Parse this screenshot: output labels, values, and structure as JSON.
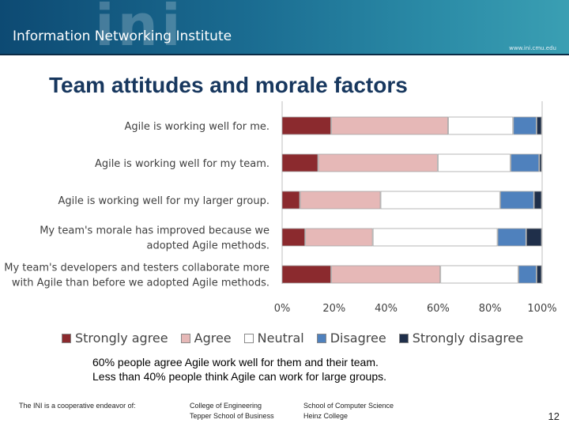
{
  "header": {
    "logo_text": "ini",
    "institute_name": "Information Networking Institute",
    "url": "www.ini.cmu.edu"
  },
  "slide": {
    "title": "Team attitudes and morale factors",
    "summary_line1": "60% people agree Agile work well for them and their team.",
    "summary_line2": "Less than 40% people think Agile can work for large groups.",
    "page_number": "12"
  },
  "footer": {
    "col1": "The INI is a cooperative endeavor of:",
    "col2_line1": "College of Engineering",
    "col2_line2": "Tepper School of Business",
    "col3_line1": "School of Computer Science",
    "col3_line2": "Heinz College"
  },
  "colors": {
    "strongly_agree": "#8b2a2e",
    "agree": "#e6b8b7",
    "neutral": "#ffffff",
    "disagree": "#4f81bd",
    "strongly_disagree": "#1f2f4a"
  },
  "chart_data": {
    "type": "bar",
    "orientation": "horizontal",
    "stacked": true,
    "categories": [
      "Agile is working well for me.",
      "Agile is working well for my team.",
      "Agile is working well for my larger group.",
      "My team's morale has improved because we adopted Agile methods.",
      "My team's developers and testers collaborate more with Agile than before we adopted Agile methods."
    ],
    "category_lines": [
      [
        "Agile is working well for me."
      ],
      [
        "Agile is working well for my team."
      ],
      [
        "Agile is working well for my larger group."
      ],
      [
        "My team's morale has improved because we",
        "adopted Agile methods."
      ],
      [
        "My team's developers and testers collaborate more",
        "with Agile than before we adopted Agile methods."
      ]
    ],
    "series": [
      {
        "name": "Strongly agree",
        "values": [
          19,
          14,
          7,
          9,
          19
        ]
      },
      {
        "name": "Agree",
        "values": [
          45,
          46,
          31,
          26,
          42
        ]
      },
      {
        "name": "Neutral",
        "values": [
          25,
          28,
          46,
          48,
          30
        ]
      },
      {
        "name": "Disagree",
        "values": [
          9,
          11,
          13,
          11,
          7
        ]
      },
      {
        "name": "Strongly disagree",
        "values": [
          2,
          1,
          3,
          6,
          2
        ]
      }
    ],
    "xlim": [
      0,
      100
    ],
    "xticks": [
      "0%",
      "20%",
      "40%",
      "60%",
      "80%",
      "100%"
    ],
    "legend_position": "bottom"
  }
}
